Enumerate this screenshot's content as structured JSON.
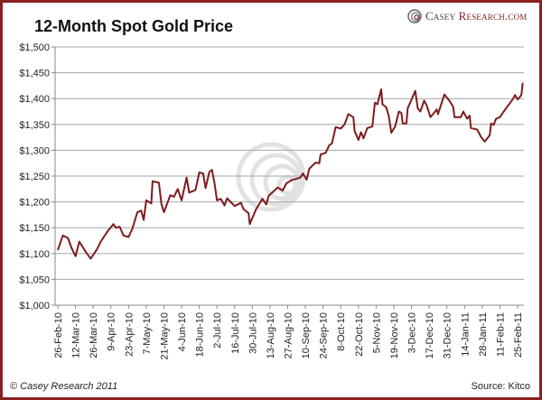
{
  "chart_data": {
    "type": "line",
    "title": "12-Month Spot Gold Price",
    "xlabel": "",
    "ylabel": "",
    "ylim": [
      1000,
      1500
    ],
    "y_ticks": [
      1000,
      1050,
      1100,
      1150,
      1200,
      1250,
      1300,
      1350,
      1400,
      1450,
      1500
    ],
    "y_tick_labels": [
      "$1,000",
      "$1,050",
      "$1,100",
      "$1,150",
      "$1,200",
      "$1,250",
      "$1,300",
      "$1,350",
      "$1,400",
      "$1,450",
      "$1,500"
    ],
    "x_ticks": [
      "2010-02-26",
      "2010-03-12",
      "2010-03-26",
      "2010-04-09",
      "2010-04-23",
      "2010-05-07",
      "2010-05-21",
      "2010-06-04",
      "2010-06-18",
      "2010-07-02",
      "2010-07-16",
      "2010-07-30",
      "2010-08-13",
      "2010-08-27",
      "2010-09-10",
      "2010-09-24",
      "2010-10-08",
      "2010-10-22",
      "2010-11-05",
      "2010-11-19",
      "2010-12-03",
      "2010-12-17",
      "2010-12-31",
      "2011-01-14",
      "2011-01-28",
      "2011-02-11",
      "2011-02-25"
    ],
    "x_tick_labels": [
      "26-Feb-10",
      "12-Mar-10",
      "26-Mar-10",
      "9-Apr-10",
      "23-Apr-10",
      "7-May-10",
      "21-May-10",
      "4-Jun-10",
      "18-Jun-10",
      "2-Jul-10",
      "16-Jul-10",
      "30-Jul-10",
      "13-Aug-10",
      "27-Aug-10",
      "10-Sep-10",
      "24-Sep-10",
      "8-Oct-10",
      "22-Oct-10",
      "5-Nov-10",
      "19-Nov-10",
      "3-Dec-10",
      "17-Dec-10",
      "31-Dec-10",
      "14-Jan-11",
      "28-Jan-11",
      "11-Feb-11",
      "25-Feb-11"
    ],
    "grid": "horizontal",
    "line_color": "#7d1c1f",
    "series": [
      {
        "points": [
          [
            "2010-02-26",
            1107
          ],
          [
            "2010-03-02",
            1135
          ],
          [
            "2010-03-06",
            1130
          ],
          [
            "2010-03-09",
            1110
          ],
          [
            "2010-03-12",
            1095
          ],
          [
            "2010-03-15",
            1123
          ],
          [
            "2010-03-21",
            1100
          ],
          [
            "2010-03-24",
            1090
          ],
          [
            "2010-03-29",
            1108
          ],
          [
            "2010-04-01",
            1123
          ],
          [
            "2010-04-07",
            1145
          ],
          [
            "2010-04-11",
            1157
          ],
          [
            "2010-04-13",
            1150
          ],
          [
            "2010-04-16",
            1152
          ],
          [
            "2010-04-19",
            1135
          ],
          [
            "2010-04-23",
            1132
          ],
          [
            "2010-04-26",
            1148
          ],
          [
            "2010-04-30",
            1180
          ],
          [
            "2010-05-03",
            1183
          ],
          [
            "2010-05-05",
            1165
          ],
          [
            "2010-05-07",
            1203
          ],
          [
            "2010-05-11",
            1197
          ],
          [
            "2010-05-12",
            1240
          ],
          [
            "2010-05-17",
            1237
          ],
          [
            "2010-05-19",
            1196
          ],
          [
            "2010-05-21",
            1180
          ],
          [
            "2010-05-26",
            1213
          ],
          [
            "2010-05-29",
            1210
          ],
          [
            "2010-06-01",
            1225
          ],
          [
            "2010-06-04",
            1203
          ],
          [
            "2010-06-08",
            1247
          ],
          [
            "2010-06-10",
            1218
          ],
          [
            "2010-06-15",
            1223
          ],
          [
            "2010-06-18",
            1257
          ],
          [
            "2010-06-21",
            1255
          ],
          [
            "2010-06-23",
            1227
          ],
          [
            "2010-06-26",
            1258
          ],
          [
            "2010-06-28",
            1262
          ],
          [
            "2010-06-30",
            1237
          ],
          [
            "2010-07-02",
            1203
          ],
          [
            "2010-07-05",
            1206
          ],
          [
            "2010-07-08",
            1193
          ],
          [
            "2010-07-10",
            1207
          ],
          [
            "2010-07-16",
            1192
          ],
          [
            "2010-07-21",
            1198
          ],
          [
            "2010-07-23",
            1186
          ],
          [
            "2010-07-27",
            1178
          ],
          [
            "2010-07-28",
            1157
          ],
          [
            "2010-08-02",
            1186
          ],
          [
            "2010-08-07",
            1206
          ],
          [
            "2010-08-10",
            1195
          ],
          [
            "2010-08-12",
            1212
          ],
          [
            "2010-08-17",
            1223
          ],
          [
            "2010-08-19",
            1228
          ],
          [
            "2010-08-23",
            1222
          ],
          [
            "2010-08-26",
            1236
          ],
          [
            "2010-08-30",
            1242
          ],
          [
            "2010-09-03",
            1245
          ],
          [
            "2010-09-06",
            1247
          ],
          [
            "2010-09-08",
            1255
          ],
          [
            "2010-09-11",
            1243
          ],
          [
            "2010-09-13",
            1264
          ],
          [
            "2010-09-18",
            1276
          ],
          [
            "2010-09-21",
            1275
          ],
          [
            "2010-09-22",
            1292
          ],
          [
            "2010-09-26",
            1295
          ],
          [
            "2010-09-29",
            1310
          ],
          [
            "2010-10-01",
            1313
          ],
          [
            "2010-10-04",
            1345
          ],
          [
            "2010-10-08",
            1342
          ],
          [
            "2010-10-11",
            1350
          ],
          [
            "2010-10-14",
            1370
          ],
          [
            "2010-10-16",
            1367
          ],
          [
            "2010-10-18",
            1364
          ],
          [
            "2010-10-19",
            1337
          ],
          [
            "2010-10-22",
            1320
          ],
          [
            "2010-10-24",
            1335
          ],
          [
            "2010-10-26",
            1323
          ],
          [
            "2010-10-29",
            1343
          ],
          [
            "2010-11-02",
            1346
          ],
          [
            "2010-11-04",
            1392
          ],
          [
            "2010-11-06",
            1389
          ],
          [
            "2010-11-09",
            1418
          ],
          [
            "2010-11-10",
            1389
          ],
          [
            "2010-11-13",
            1383
          ],
          [
            "2010-11-15",
            1366
          ],
          [
            "2010-11-17",
            1334
          ],
          [
            "2010-11-20",
            1346
          ],
          [
            "2010-11-23",
            1375
          ],
          [
            "2010-11-25",
            1372
          ],
          [
            "2010-11-26",
            1352
          ],
          [
            "2010-11-29",
            1352
          ],
          [
            "2010-11-30",
            1381
          ],
          [
            "2010-12-03",
            1398
          ],
          [
            "2010-12-06",
            1415
          ],
          [
            "2010-12-08",
            1381
          ],
          [
            "2010-12-10",
            1375
          ],
          [
            "2010-12-13",
            1396
          ],
          [
            "2010-12-15",
            1387
          ],
          [
            "2010-12-18",
            1364
          ],
          [
            "2010-12-23",
            1379
          ],
          [
            "2010-12-24",
            1370
          ],
          [
            "2010-12-29",
            1408
          ],
          [
            "2011-01-02",
            1396
          ],
          [
            "2011-01-05",
            1384
          ],
          [
            "2011-01-06",
            1364
          ],
          [
            "2011-01-11",
            1364
          ],
          [
            "2011-01-13",
            1375
          ],
          [
            "2011-01-16",
            1361
          ],
          [
            "2011-01-18",
            1367
          ],
          [
            "2011-01-19",
            1343
          ],
          [
            "2011-01-24",
            1340
          ],
          [
            "2011-01-27",
            1326
          ],
          [
            "2011-01-30",
            1317
          ],
          [
            "2011-02-03",
            1329
          ],
          [
            "2011-02-04",
            1352
          ],
          [
            "2011-02-06",
            1349
          ],
          [
            "2011-02-08",
            1361
          ],
          [
            "2011-02-11",
            1364
          ],
          [
            "2011-02-14",
            1375
          ],
          [
            "2011-02-21",
            1398
          ],
          [
            "2011-02-23",
            1407
          ],
          [
            "2011-02-25",
            1398
          ],
          [
            "2011-02-28",
            1407
          ],
          [
            "2011-03-01",
            1430
          ]
        ]
      }
    ]
  },
  "branding": {
    "logo_text_casey": "Casey",
    "logo_text_research": "Research.com",
    "logo_icon": "spiral-rings-icon",
    "border_color": "#8a1f22"
  },
  "footer": {
    "copyright": "© Casey Research 2011",
    "source": "Source: Kitco"
  }
}
